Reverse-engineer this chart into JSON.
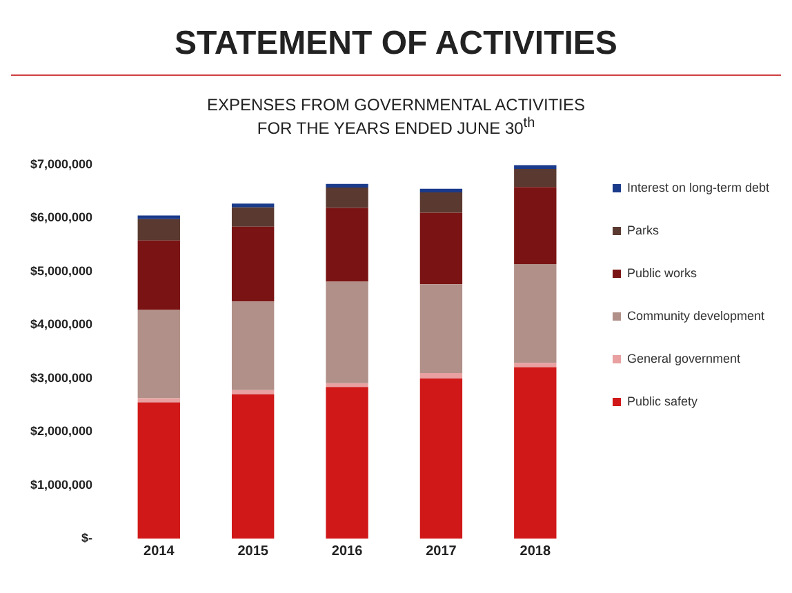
{
  "chart_data": {
    "type": "bar",
    "title": "STATEMENT OF ACTIVITIES",
    "subtitle": "EXPENSES FROM GOVERNMENTAL ACTIVITIES\nFOR THE YEARS ENDED JUNE 30$^{th}$",
    "categories": [
      "2014",
      "2015",
      "2016",
      "2017",
      "2018"
    ],
    "stacked": true,
    "series": [
      {
        "name": "Public safety",
        "color": "#d01818",
        "values": [
          2550000,
          2700000,
          2840000,
          3000000,
          3210000
        ]
      },
      {
        "name": "General government",
        "color": "#e8a0a0",
        "values": [
          80000,
          80000,
          70000,
          100000,
          80000
        ]
      },
      {
        "name": "Community development",
        "color": "#b09088",
        "values": [
          1650000,
          1660000,
          1900000,
          1660000,
          1850000
        ]
      },
      {
        "name": "Public works",
        "color": "#7a1414",
        "values": [
          1300000,
          1400000,
          1380000,
          1340000,
          1440000
        ]
      },
      {
        "name": "Parks",
        "color": "#5a3a30",
        "values": [
          400000,
          360000,
          380000,
          380000,
          340000
        ]
      },
      {
        "name": "Interest on long-term debt",
        "color": "#1a3a8a",
        "values": [
          70000,
          70000,
          70000,
          70000,
          70000
        ]
      }
    ],
    "ylim": [
      0,
      7000000
    ],
    "yticks": [
      {
        "value": 0,
        "label": "$-"
      },
      {
        "value": 1000000,
        "label": "$1,000,000"
      },
      {
        "value": 2000000,
        "label": "$2,000,000"
      },
      {
        "value": 3000000,
        "label": "$3,000,000"
      },
      {
        "value": 4000000,
        "label": "$4,000,000"
      },
      {
        "value": 5000000,
        "label": "$5,000,000"
      },
      {
        "value": 6000000,
        "label": "$6,000,000"
      },
      {
        "value": 7000000,
        "label": "$7,000,000"
      }
    ],
    "grid": false,
    "legend": "right"
  }
}
